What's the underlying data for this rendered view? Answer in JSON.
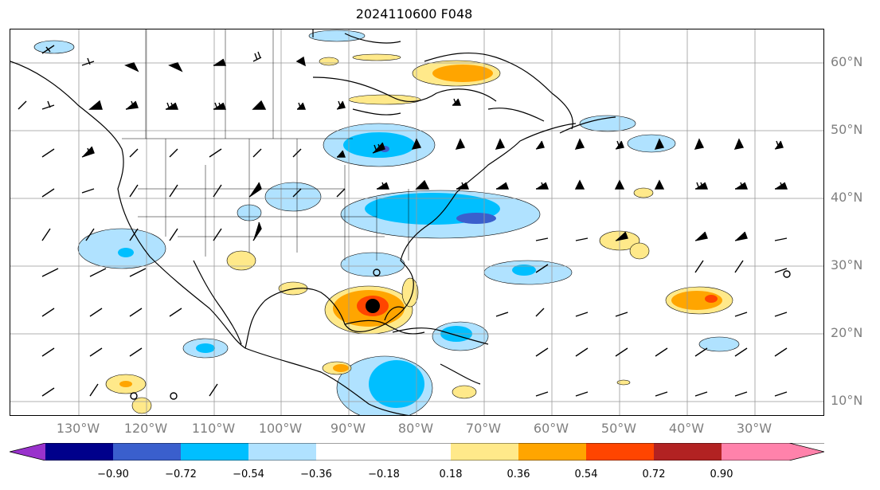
{
  "title": "2024110600 F048",
  "lat_labels": [
    "60°N",
    "50°N",
    "40°N",
    "30°N",
    "20°N",
    "10°N"
  ],
  "lon_labels": [
    "130°W",
    "120°W",
    "110°W",
    "100°W",
    "90°W",
    "80°W",
    "70°W",
    "60°W",
    "50°W",
    "40°W",
    "30°W"
  ],
  "colorbar": {
    "ticks": [
      "−0.90",
      "−0.72",
      "−0.54",
      "−0.36",
      "−0.18",
      "0.18",
      "0.36",
      "0.54",
      "0.72",
      "0.90"
    ],
    "colors": [
      "#9932cc",
      "#00008b",
      "#3a5fcd",
      "#00bfff",
      "#b0e2ff",
      "#ffffff",
      "#ffe98a",
      "#ffa500",
      "#ff4500",
      "#b22222",
      "#ff82ab"
    ]
  }
}
